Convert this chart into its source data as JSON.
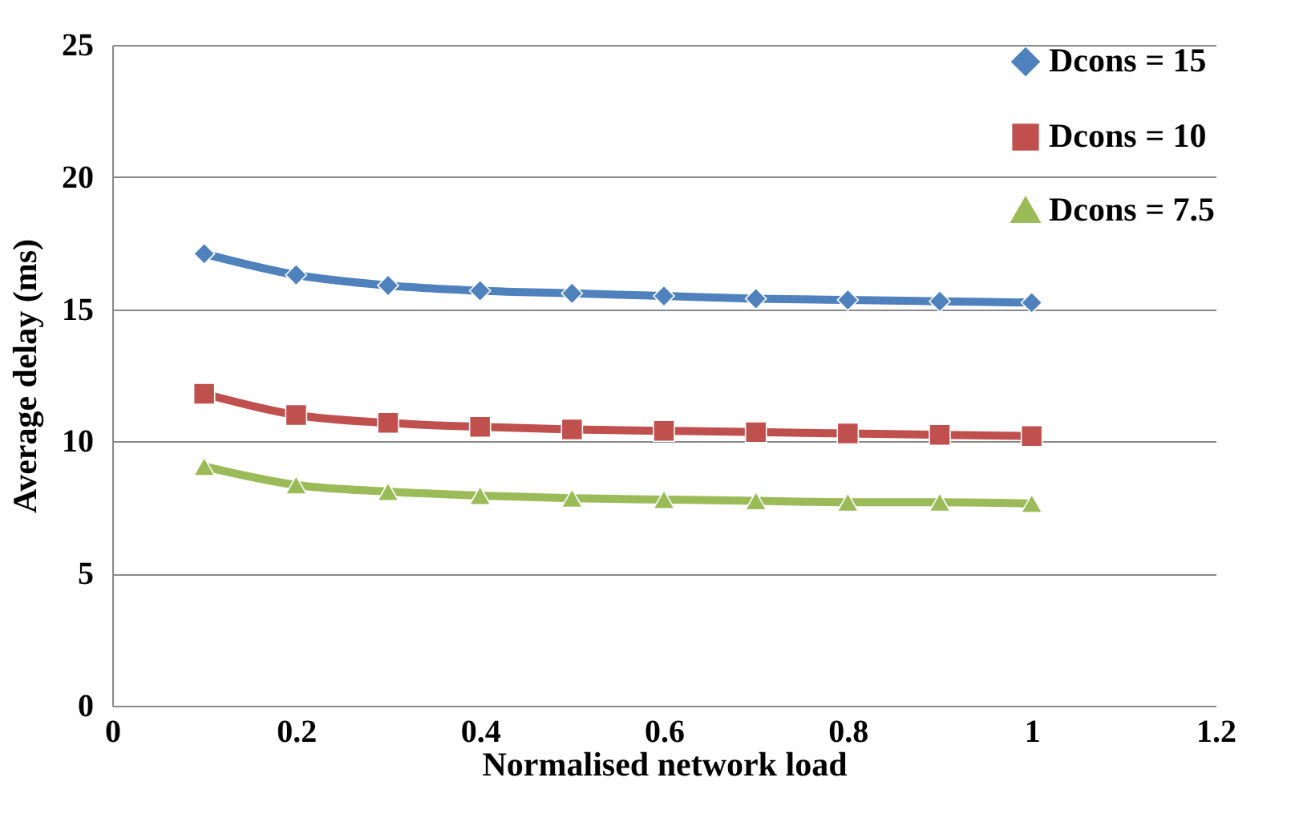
{
  "chart_data": {
    "type": "line",
    "xlabel": "Normalised network load",
    "ylabel": "Average delay (ms)",
    "x": [
      0.1,
      0.2,
      0.3,
      0.4,
      0.5,
      0.6,
      0.7,
      0.8,
      0.9,
      1
    ],
    "series": [
      {
        "name": "Dcons = 15",
        "color": "#4f81bd",
        "marker": "diamond",
        "values": [
          17.1,
          16.3,
          15.9,
          15.7,
          15.6,
          15.5,
          15.4,
          15.35,
          15.3,
          15.25
        ]
      },
      {
        "name": "Dcons = 10",
        "color": "#c0504d",
        "marker": "square",
        "values": [
          11.8,
          11.0,
          10.7,
          10.55,
          10.45,
          10.4,
          10.35,
          10.3,
          10.25,
          10.2
        ]
      },
      {
        "name": "Dcons = 7.5",
        "color": "#9bbb59",
        "marker": "triangle",
        "values": [
          9.05,
          8.35,
          8.1,
          7.95,
          7.85,
          7.8,
          7.75,
          7.7,
          7.7,
          7.65
        ]
      }
    ],
    "xlim": [
      0,
      1.2
    ],
    "xticks": [
      0,
      0.2,
      0.4,
      0.6,
      0.8,
      1,
      1.2
    ],
    "ylim": [
      0,
      25
    ],
    "yticks": [
      0,
      5,
      10,
      15,
      20,
      25
    ],
    "grid": "y",
    "legend": "top right",
    "line_style": "solid"
  }
}
